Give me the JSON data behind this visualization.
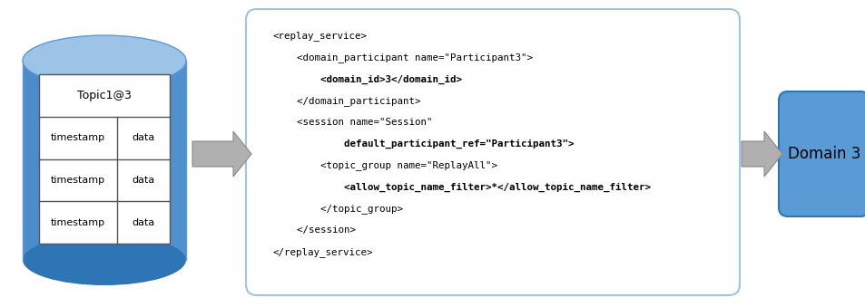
{
  "bg_color": "#ffffff",
  "cylinder_body_color": "#5b9bd5",
  "cylinder_top_color": "#9dc3e6",
  "cylinder_shadow_color": "#2e75b6",
  "table_header": "Topic1@3",
  "table_rows": [
    [
      "timestamp",
      "data"
    ],
    [
      "timestamp",
      "data"
    ],
    [
      "timestamp",
      "data"
    ]
  ],
  "xml_lines": [
    {
      "text": "<replay_service>",
      "bold": false
    },
    {
      "text": "    <domain_participant name=\"Participant3\">",
      "bold": false
    },
    {
      "text": "        <domain_id>3</domain_id>",
      "bold": true
    },
    {
      "text": "    </domain_participant>",
      "bold": false
    },
    {
      "text": "    <session name=\"Session\"",
      "bold": false
    },
    {
      "text": "            default_participant_ref=\"Participant3\">",
      "bold": true
    },
    {
      "text": "        <topic_group name=\"ReplayAll\">",
      "bold": false
    },
    {
      "text": "            <allow_topic_name_filter>*</allow_topic_name_filter>",
      "bold": true
    },
    {
      "text": "        </topic_group>",
      "bold": false
    },
    {
      "text": "    </session>",
      "bold": false
    },
    {
      "text": "</replay_service>",
      "bold": false
    }
  ],
  "domain_box_color": "#5b9bd5",
  "domain_box_edge": "#2e75b6",
  "domain_text": "Domain 3",
  "domain_text_color": "#000000",
  "arrow_color": "#b0b0b0",
  "arrow_edge_color": "#888888",
  "xml_border_color": "#9dc3e6",
  "xml_text_color": "#000000",
  "font_size_xml": 7.8,
  "font_size_table": 9,
  "font_size_domain": 12
}
